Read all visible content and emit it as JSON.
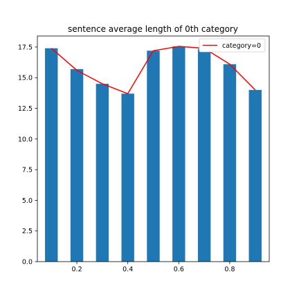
{
  "chart_data": {
    "type": "bar",
    "title": "sentence average length of 0th category",
    "xlabel": "",
    "ylabel": "",
    "x": [
      0.1,
      0.2,
      0.3,
      0.4,
      0.5,
      0.6,
      0.7,
      0.8,
      0.9
    ],
    "values": [
      17.4,
      15.7,
      14.5,
      13.7,
      17.2,
      17.55,
      17.35,
      16.1,
      14.0
    ],
    "bar_width": 0.05,
    "xlim": [
      0.045,
      0.955
    ],
    "ylim": [
      0,
      18.4
    ],
    "xticks": [
      0.2,
      0.4,
      0.6,
      0.8
    ],
    "xtick_labels": [
      "0.2",
      "0.4",
      "0.6",
      "0.8"
    ],
    "yticks": [
      0.0,
      2.5,
      5.0,
      7.5,
      10.0,
      12.5,
      15.0,
      17.5
    ],
    "ytick_labels": [
      "0.0",
      "2.5",
      "5.0",
      "7.5",
      "10.0",
      "12.5",
      "15.0",
      "17.5"
    ],
    "bar_color": "#1f77b4",
    "series": [
      {
        "name": "category=0",
        "type": "line",
        "color": "#ff0000",
        "x": [
          0.1,
          0.2,
          0.3,
          0.4,
          0.5,
          0.6,
          0.7,
          0.8,
          0.9
        ],
        "values": [
          17.4,
          15.6,
          14.5,
          13.7,
          17.2,
          17.55,
          17.4,
          16.1,
          14.0
        ]
      }
    ],
    "grid": false,
    "legend_position": "top-right"
  }
}
